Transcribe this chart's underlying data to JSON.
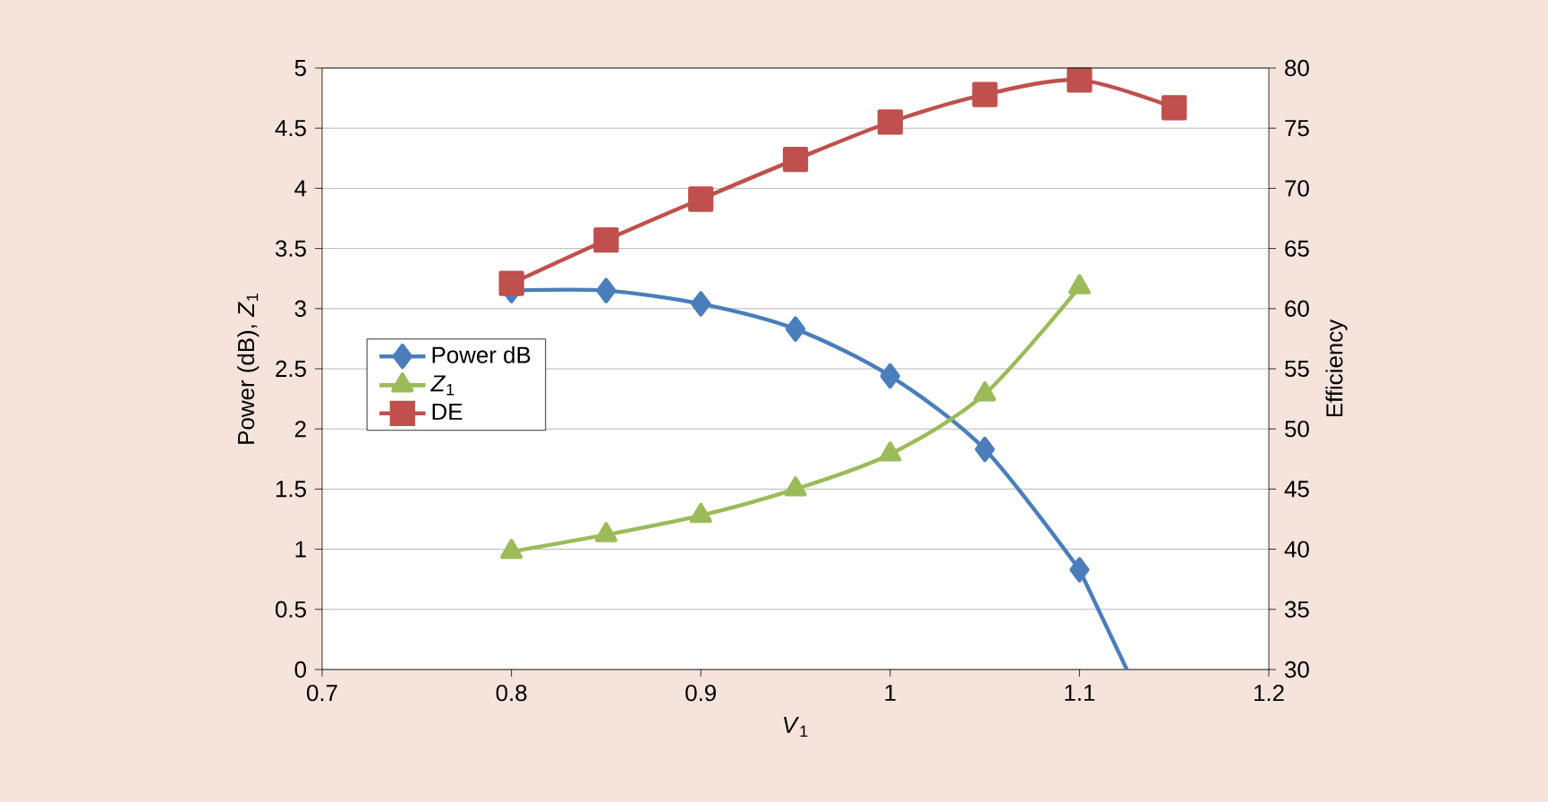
{
  "chart_data": {
    "type": "line",
    "xlabel": "*V*$_{1}$",
    "ylabel": "Power (dB),  *Z*$_{1}$",
    "y2label": "Efficiency",
    "xlim": [
      0.7,
      1.2
    ],
    "xticks": [
      0.7,
      0.8,
      0.9,
      1,
      1.1,
      1.2
    ],
    "ylim": [
      0,
      5
    ],
    "yticks": [
      0,
      0.5,
      1,
      1.5,
      2,
      2.5,
      3,
      3.5,
      4,
      4.5,
      5
    ],
    "y2lim": [
      30,
      80
    ],
    "y2ticks": [
      30,
      35,
      40,
      45,
      50,
      55,
      60,
      65,
      70,
      75,
      80
    ],
    "grid": "y",
    "legend": "left",
    "line_style": "solid",
    "series": [
      {
        "name": "Power dB",
        "color": "#4a7ebb",
        "marker": "diamond",
        "x": [
          0.8,
          0.85,
          0.9,
          0.95,
          1.0,
          1.05,
          1.1
        ],
        "values": [
          3.15,
          3.15,
          3.04,
          2.83,
          2.44,
          1.83,
          0.83
        ]
      },
      {
        "color": "#4a7ebb",
        "marker": "none",
        "x": [
          1.1,
          1.125
        ],
        "values": [
          0.83,
          0
        ]
      },
      {
        "name": "*Z*$_{1}$",
        "color": "#9bbb59",
        "marker": "triangle",
        "x": [
          0.8,
          0.85,
          0.9,
          0.95,
          1.0,
          1.05,
          1.1
        ],
        "values": [
          0.98,
          1.12,
          1.28,
          1.5,
          1.79,
          2.29,
          3.18
        ]
      },
      {
        "name": "DE",
        "color": "#c0504d",
        "marker": "square",
        "axis": "y2",
        "x": [
          0.8,
          0.85,
          0.9,
          0.95,
          1.0,
          1.05,
          1.1,
          1.15
        ],
        "values": [
          62.1,
          65.7,
          69.1,
          72.4,
          75.5,
          77.8,
          79.0,
          76.7
        ]
      }
    ]
  }
}
